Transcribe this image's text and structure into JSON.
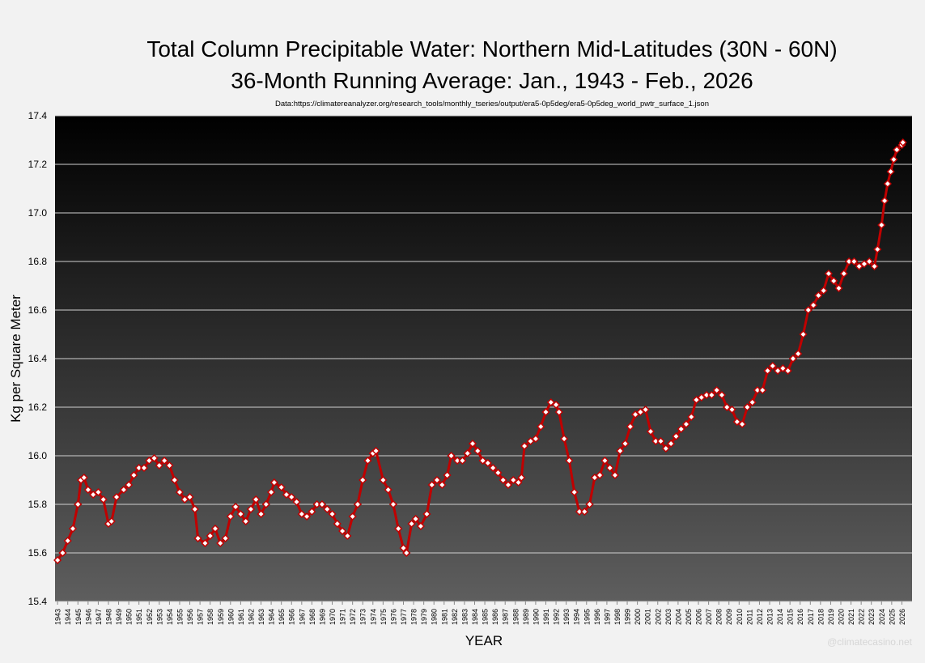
{
  "chart_data": {
    "type": "line",
    "title": "Total Column Precipitable Water: Northern Mid-Latitudes (30N - 60N)",
    "subtitle": "36-Month Running Average: Jan., 1943 - Feb., 2026",
    "source": "Data:https://climatereanalyzer.org/research_tools/monthly_tseries/output/era5-0p5deg/era5-0p5deg_world_pwtr_surface_1.json",
    "xlabel": "YEAR",
    "ylabel": "Kg per Square Meter",
    "watermark": "@climatecasino.net",
    "grid": true,
    "xlim": [
      1942.75,
      2027
    ],
    "ylim": [
      15.4,
      17.4
    ],
    "yticks": [
      {
        "value": 15.4,
        "label": "15.4"
      },
      {
        "value": 15.6,
        "label": "15.6"
      },
      {
        "value": 15.8,
        "label": "15.8"
      },
      {
        "value": 16.0,
        "label": "16.0"
      },
      {
        "value": 16.2,
        "label": "16.2"
      },
      {
        "value": 16.4,
        "label": "16.4"
      },
      {
        "value": 16.6,
        "label": "16.6"
      },
      {
        "value": 16.8,
        "label": "16.8"
      },
      {
        "value": 17.0,
        "label": "17.0"
      },
      {
        "value": 17.2,
        "label": "17.2"
      },
      {
        "value": 17.4,
        "label": "17.4"
      }
    ],
    "xticks": [
      1943,
      1944,
      1945,
      1946,
      1947,
      1948,
      1949,
      1950,
      1951,
      1952,
      1953,
      1954,
      1955,
      1956,
      1957,
      1958,
      1959,
      1960,
      1961,
      1962,
      1963,
      1964,
      1965,
      1966,
      1967,
      1968,
      1969,
      1970,
      1971,
      1972,
      1973,
      1974,
      1975,
      1976,
      1977,
      1978,
      1979,
      1980,
      1981,
      1982,
      1983,
      1984,
      1985,
      1986,
      1987,
      1988,
      1989,
      1990,
      1991,
      1992,
      1993,
      1994,
      1995,
      1996,
      1997,
      1998,
      1999,
      2000,
      2001,
      2002,
      2003,
      2004,
      2005,
      2006,
      2007,
      2008,
      2009,
      2010,
      2011,
      2012,
      2013,
      2014,
      2015,
      2016,
      2017,
      2018,
      2019,
      2020,
      2021,
      2022,
      2023,
      2024,
      2025,
      2026
    ],
    "x": [
      1943.0,
      1943.5,
      1944.0,
      1944.5,
      1945.0,
      1945.3,
      1945.6,
      1946.0,
      1946.5,
      1947.0,
      1947.5,
      1948.0,
      1948.3,
      1948.8,
      1949.5,
      1950.0,
      1950.5,
      1951.0,
      1951.5,
      1952.0,
      1952.5,
      1953.0,
      1953.5,
      1954.0,
      1954.5,
      1955.0,
      1955.5,
      1956.0,
      1956.5,
      1956.8,
      1957.5,
      1958.0,
      1958.5,
      1959.0,
      1959.5,
      1960.0,
      1960.5,
      1961.0,
      1961.5,
      1962.0,
      1962.5,
      1963.0,
      1963.5,
      1964.0,
      1964.3,
      1965.0,
      1965.5,
      1966.0,
      1966.5,
      1967.0,
      1967.5,
      1968.0,
      1968.5,
      1969.0,
      1969.5,
      1970.0,
      1970.5,
      1971.0,
      1971.5,
      1972.0,
      1972.5,
      1973.0,
      1973.5,
      1974.0,
      1974.3,
      1975.0,
      1975.5,
      1976.0,
      1976.5,
      1977.0,
      1977.3,
      1977.8,
      1978.2,
      1978.7,
      1979.3,
      1979.8,
      1980.3,
      1980.8,
      1981.3,
      1981.7,
      1982.3,
      1982.8,
      1983.3,
      1983.8,
      1984.3,
      1984.8,
      1985.3,
      1985.8,
      1986.3,
      1986.8,
      1987.3,
      1987.8,
      1988.3,
      1988.6,
      1988.9,
      1989.5,
      1990.0,
      1990.5,
      1991.0,
      1991.5,
      1992.0,
      1992.3,
      1992.8,
      1993.3,
      1993.8,
      1994.3,
      1994.8,
      1995.3,
      1995.8,
      1996.3,
      1996.8,
      1997.3,
      1997.8,
      1998.3,
      1998.8,
      1999.3,
      1999.8,
      2000.3,
      2000.8,
      2001.3,
      2001.8,
      2002.3,
      2002.8,
      2003.3,
      2003.8,
      2004.3,
      2004.8,
      2005.3,
      2005.8,
      2006.3,
      2006.8,
      2007.3,
      2007.8,
      2008.3,
      2008.8,
      2009.3,
      2009.8,
      2010.3,
      2010.8,
      2011.3,
      2011.8,
      2012.3,
      2012.8,
      2013.3,
      2013.8,
      2014.3,
      2014.8,
      2015.3,
      2015.8,
      2016.3,
      2016.8,
      2017.3,
      2017.8,
      2018.3,
      2018.8,
      2019.3,
      2019.8,
      2020.3,
      2020.8,
      2021.3,
      2021.8,
      2022.3,
      2022.8,
      2023.3,
      2023.6,
      2024.0,
      2024.3,
      2024.6,
      2024.9,
      2025.2,
      2025.5,
      2026.0,
      2026.1
    ],
    "series": [
      {
        "color": "#c00000",
        "marker_color": "#ffffff",
        "values": [
          15.57,
          15.6,
          15.65,
          15.7,
          15.8,
          15.9,
          15.91,
          15.86,
          15.84,
          15.85,
          15.82,
          15.72,
          15.73,
          15.83,
          15.86,
          15.88,
          15.92,
          15.95,
          15.95,
          15.98,
          15.99,
          15.96,
          15.98,
          15.96,
          15.9,
          15.85,
          15.82,
          15.83,
          15.78,
          15.66,
          15.64,
          15.67,
          15.7,
          15.64,
          15.66,
          15.75,
          15.79,
          15.76,
          15.73,
          15.78,
          15.82,
          15.76,
          15.8,
          15.85,
          15.89,
          15.87,
          15.84,
          15.83,
          15.81,
          15.76,
          15.75,
          15.77,
          15.8,
          15.8,
          15.78,
          15.76,
          15.72,
          15.69,
          15.67,
          15.75,
          15.8,
          15.9,
          15.98,
          16.01,
          16.02,
          15.9,
          15.86,
          15.8,
          15.7,
          15.62,
          15.6,
          15.72,
          15.74,
          15.71,
          15.76,
          15.88,
          15.9,
          15.88,
          15.92,
          16.0,
          15.98,
          15.98,
          16.01,
          16.05,
          16.02,
          15.98,
          15.97,
          15.95,
          15.93,
          15.9,
          15.88,
          15.9,
          15.89,
          15.91,
          16.04,
          16.06,
          16.07,
          16.12,
          16.18,
          16.22,
          16.21,
          16.18,
          16.07,
          15.98,
          15.85,
          15.77,
          15.77,
          15.8,
          15.91,
          15.92,
          15.98,
          15.95,
          15.92,
          16.02,
          16.05,
          16.12,
          16.17,
          16.18,
          16.19,
          16.1,
          16.06,
          16.06,
          16.03,
          16.05,
          16.08,
          16.11,
          16.13,
          16.16,
          16.23,
          16.24,
          16.25,
          16.25,
          16.27,
          16.25,
          16.2,
          16.19,
          16.14,
          16.13,
          16.2,
          16.22,
          16.27,
          16.27,
          16.35,
          16.37,
          16.35,
          16.36,
          16.35,
          16.4,
          16.42,
          16.5,
          16.6,
          16.62,
          16.66,
          16.68,
          16.75,
          16.72,
          16.69,
          16.75,
          16.8,
          16.8,
          16.78,
          16.79,
          16.8,
          16.78,
          16.85,
          16.95,
          17.05,
          17.12,
          17.17,
          17.22,
          17.26,
          17.28,
          17.29
        ]
      }
    ]
  }
}
